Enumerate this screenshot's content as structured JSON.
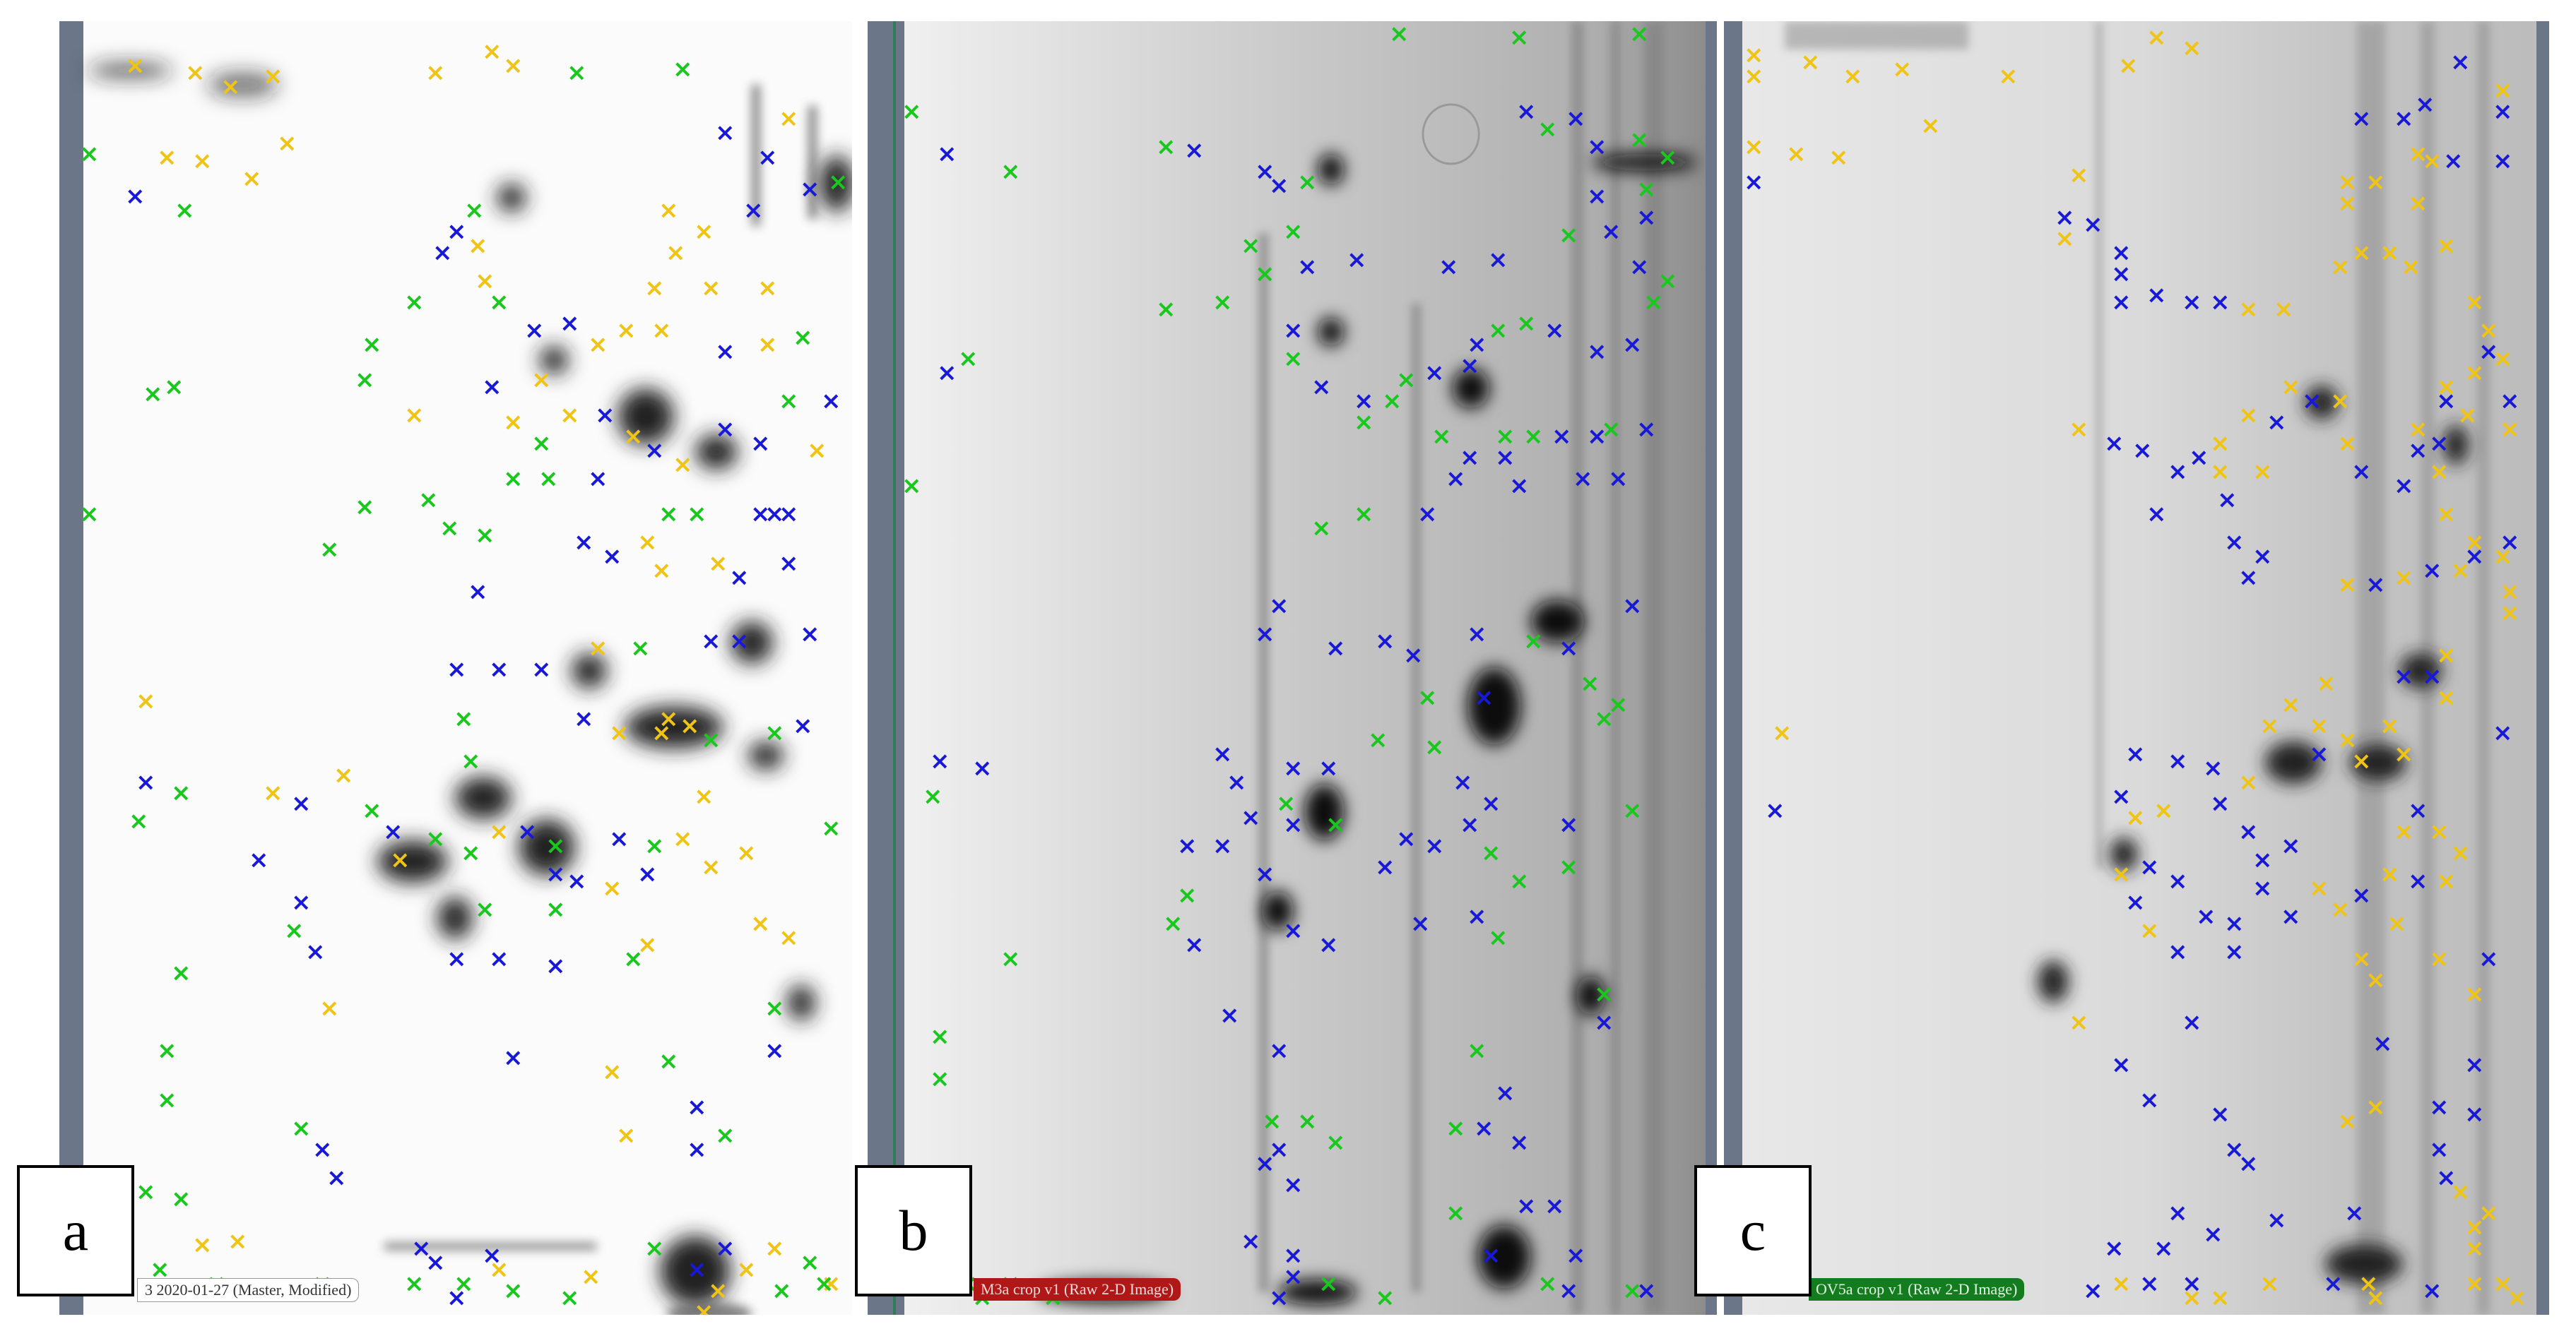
{
  "colors": {
    "frame": "#6b7688",
    "marker_green": "#18c81c",
    "marker_blue": "#1818d8",
    "marker_yellow": "#f0c414",
    "caption_red": "#b01818",
    "caption_green": "#137c1e"
  },
  "panels": [
    {
      "id": "a",
      "letter": "a",
      "caption": "3 2020-01-27 (Master, Modified)",
      "caption_style": "white",
      "background": "master-gel-white"
    },
    {
      "id": "b",
      "letter": "b",
      "caption": "M3a crop v1 (Raw 2-D Image)",
      "caption_style": "red",
      "background": "raw-gel-grey"
    },
    {
      "id": "c",
      "letter": "c",
      "caption": "OV5a crop v1 (Raw 2-D Image)",
      "caption_style": "green",
      "background": "raw-gel-light-grey"
    }
  ],
  "marker_legend": {
    "glyph": "×",
    "kinds": [
      "green",
      "blue",
      "yellow"
    ]
  }
}
